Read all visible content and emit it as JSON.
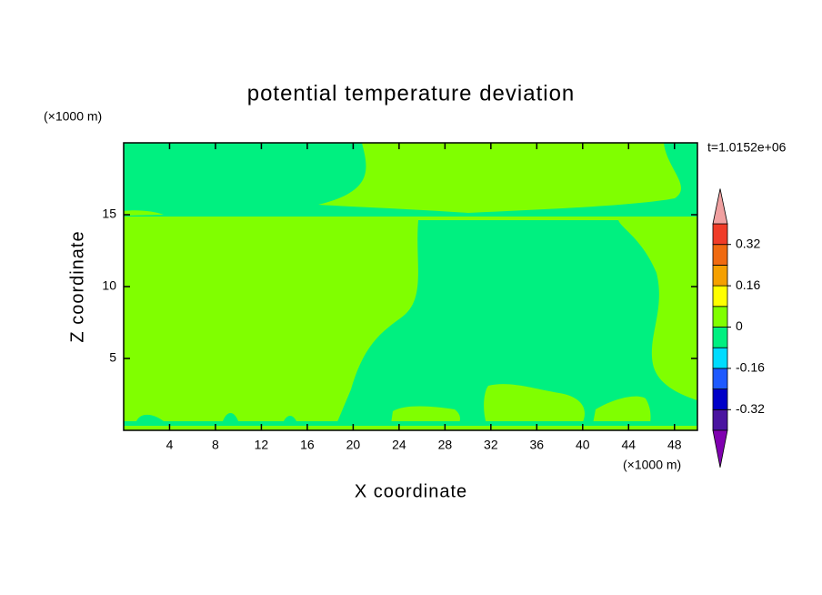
{
  "chart_data": {
    "type": "contour",
    "title": "potential temperature deviation",
    "xlabel": "X coordinate",
    "ylabel": "Z coordinate",
    "xunit": "(×1000 m)",
    "yunit": "(×1000 m)",
    "time_label": "t=1.0152e+06",
    "xlim": [
      0,
      50
    ],
    "xticks": [
      4,
      8,
      12,
      16,
      20,
      24,
      28,
      32,
      36,
      40,
      44,
      48
    ],
    "ylim": [
      0,
      20
    ],
    "yticks": [
      5,
      10,
      15
    ],
    "colorbar": {
      "levels": [
        -0.4,
        -0.32,
        -0.24,
        -0.16,
        -0.08,
        0,
        0.08,
        0.16,
        0.24,
        0.32,
        0.4
      ],
      "colors": [
        "#8000b0",
        "#4a14a0",
        "#0000c8",
        "#1e5aff",
        "#00dcff",
        "#00f080",
        "#80ff00",
        "#ffff00",
        "#f5a000",
        "#f06a10",
        "#f03c28",
        "#f0a0a0"
      ],
      "ticks": [
        -0.32,
        -0.16,
        0,
        0.16,
        0.32
      ]
    }
  }
}
